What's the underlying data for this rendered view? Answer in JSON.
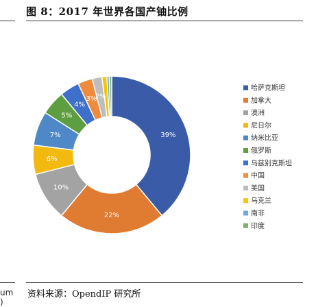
{
  "figure": {
    "header": "图 8：2017 年世界各国产铀比例",
    "source": "资料来源：OpendIP 研究所",
    "left_fragments": [
      "um",
      ")"
    ]
  },
  "chart_data": {
    "type": "pie",
    "variant": "donut",
    "categories": [
      "哈萨克斯坦",
      "加拿大",
      "澳洲",
      "尼日尔",
      "纳米比亚",
      "俄罗斯",
      "乌兹别克斯坦",
      "中国",
      "美国",
      "乌克兰",
      "南非",
      "印度"
    ],
    "values": [
      39,
      22,
      10,
      6,
      7,
      5,
      4,
      3,
      2,
      1,
      0.5,
      0.5
    ],
    "labels": [
      "39%",
      "22%",
      "10%",
      "6%",
      "7%",
      "5%",
      "4%",
      "3%",
      "2%",
      "",
      "",
      ""
    ],
    "colors": [
      "#3A5BA8",
      "#E07B32",
      "#A3A3A3",
      "#F2B90F",
      "#4F88C6",
      "#5E9E40",
      "#3E6FCB",
      "#F08A3C",
      "#BDBDBD",
      "#F7C600",
      "#6FA8DC",
      "#7FB069"
    ],
    "legend_position": "right"
  }
}
